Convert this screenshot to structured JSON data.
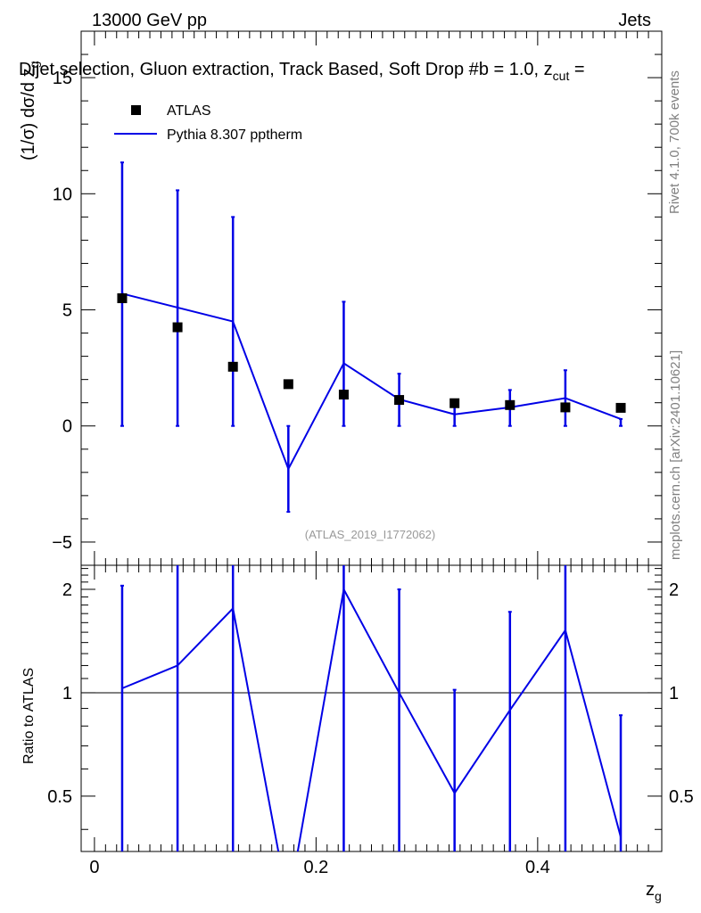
{
  "header": {
    "left": "13000 GeV pp",
    "right": "Jets"
  },
  "chart_data": [
    {
      "type": "scatter",
      "panel": "main",
      "title": "Dijet selection, Gluon extraction, Track Based, Soft Drop #b = 1.0, z_cut =",
      "title_main": "Dijet selection, Gluon extraction, Track Based, Soft Drop #",
      "title_beta": "b",
      "title_tail": " = 1.0, z",
      "title_sub": "cut",
      "title_end": " =",
      "ylabel_prefix": "(1/σ) dσ/d z",
      "ylabel_sub": "g",
      "ylim": [
        -6.0,
        17.0
      ],
      "yticks": [
        -5,
        0,
        5,
        10,
        15
      ],
      "ytick_labels": [
        "−5",
        "0",
        "5",
        "10",
        "15"
      ],
      "x": [
        0.025,
        0.075,
        0.125,
        0.175,
        0.225,
        0.275,
        0.325,
        0.375,
        0.425,
        0.475
      ],
      "series": [
        {
          "name": "ATLAS",
          "marker": "square",
          "color": "#000000",
          "values": [
            5.5,
            4.25,
            2.55,
            1.8,
            1.35,
            1.12,
            0.98,
            0.9,
            0.8,
            0.78
          ]
        },
        {
          "name": "Pythia 8.307 pptherm",
          "marker": "line",
          "color": "#0000e6",
          "values": [
            5.7,
            5.1,
            4.5,
            -1.85,
            2.7,
            1.15,
            0.5,
            0.8,
            1.2,
            0.3
          ],
          "err_low": [
            0.0,
            0.0,
            0.0,
            -3.7,
            0.0,
            0.0,
            0.0,
            0.0,
            0.0,
            0.0
          ],
          "err_high": [
            11.35,
            10.15,
            9.0,
            0.0,
            5.35,
            2.25,
            0.95,
            1.55,
            2.4,
            0.3
          ]
        }
      ],
      "legend": [
        "ATLAS",
        "Pythia 8.307 pptherm"
      ],
      "legend_position": "top-left",
      "annotation": "(ATLAS_2019_I1772062)"
    },
    {
      "type": "line",
      "panel": "ratio",
      "ylabel": "Ratio to ATLAS",
      "xlabel_main": "z",
      "xlabel_sub": "g",
      "xlim": [
        -0.012,
        0.512
      ],
      "xticks": [
        0.0,
        0.2,
        0.4
      ],
      "xtick_labels": [
        "0",
        "0.2",
        "0.4"
      ],
      "ylim": [
        0.345,
        2.35
      ],
      "yticks": [
        0.5,
        1,
        2
      ],
      "ytick_labels": [
        "0.5",
        "1",
        "2"
      ],
      "reference_line": 1.0,
      "x": [
        0.025,
        0.075,
        0.125,
        0.175,
        0.225,
        0.275,
        0.325,
        0.375,
        0.425,
        0.475
      ],
      "series": [
        {
          "name": "Pythia 8.307 pptherm / ATLAS",
          "color": "#0000e6",
          "values": [
            1.03,
            1.2,
            1.76,
            -1.03,
            2.0,
            1.0,
            0.51,
            0.89,
            1.52,
            0.38
          ],
          "err_low": [
            0.0,
            0.0,
            0.0,
            -2.05,
            0.0,
            0.0,
            0.0,
            0.0,
            0.0,
            0.0
          ],
          "err_high": [
            2.05,
            2.4,
            3.53,
            0.0,
            3.96,
            2.0,
            1.02,
            1.72,
            3.0,
            0.86
          ]
        }
      ]
    }
  ],
  "side_text": {
    "rivet": "Rivet 4.1.0,  700k events",
    "site": "mcplots.cern.ch [arXiv:2401.10621]"
  }
}
